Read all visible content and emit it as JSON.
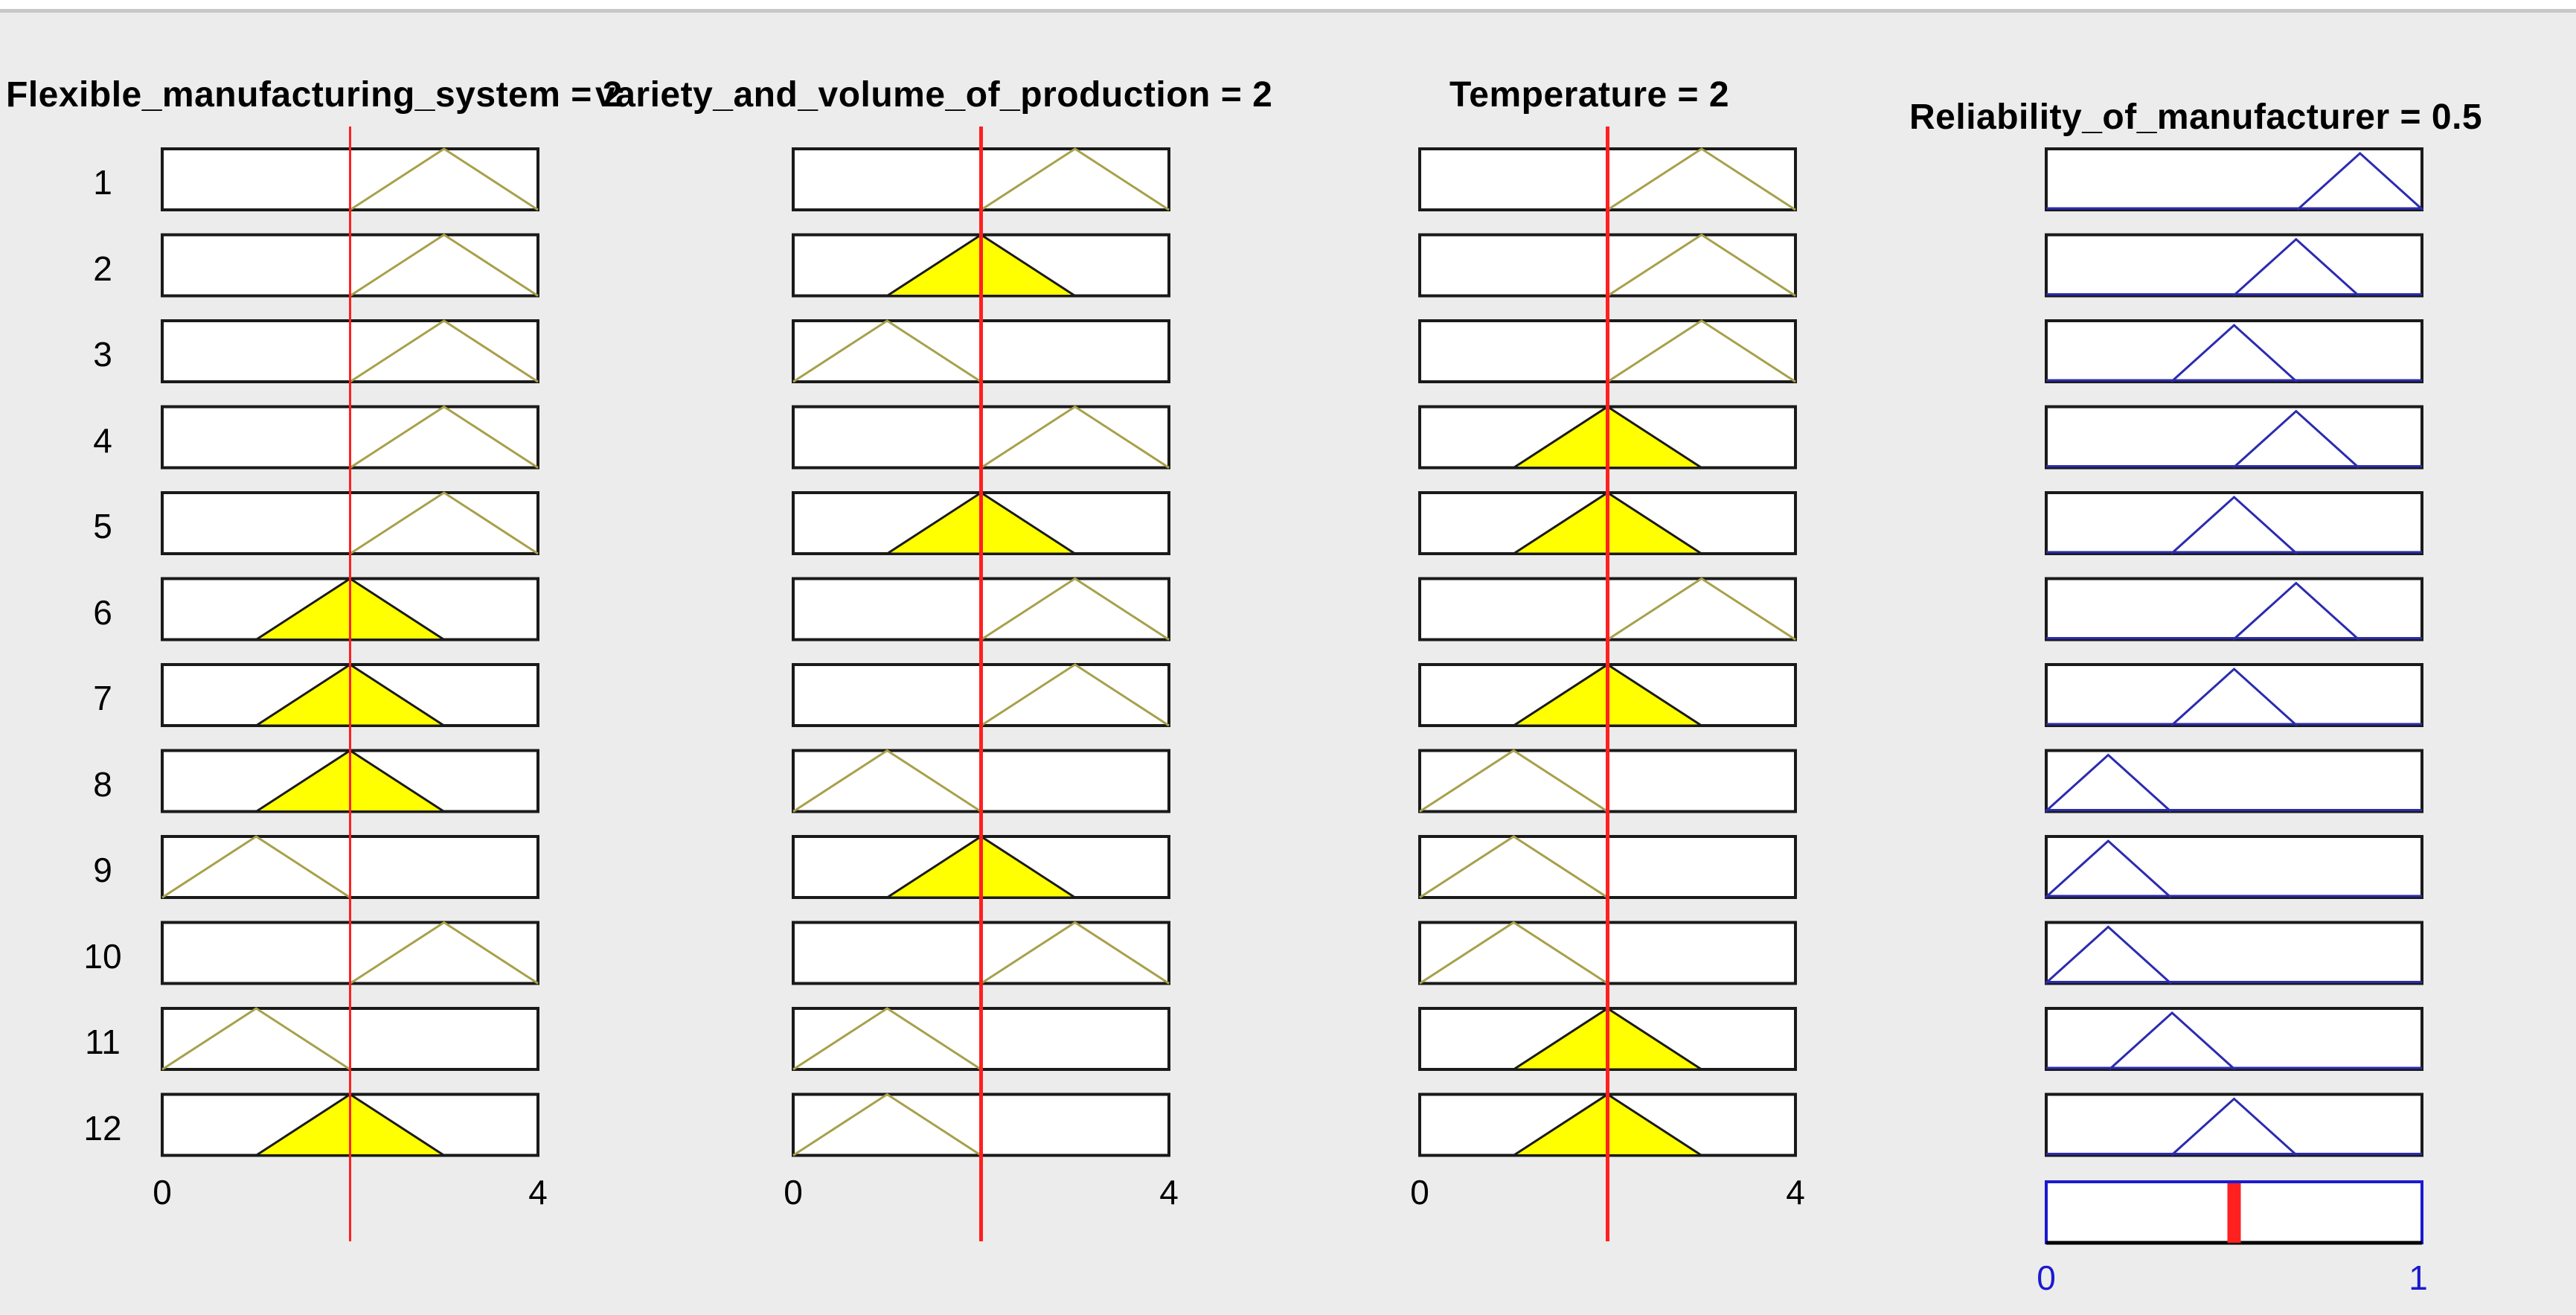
{
  "window": {
    "rule_color": "#c8c8c8",
    "background": "#ececec"
  },
  "inputs": [
    {
      "title": "Flexible_manufacturing_system = 2",
      "value": 2,
      "range": [
        0,
        4
      ],
      "mf_centers": [
        3,
        3,
        3,
        3,
        3,
        2,
        2,
        2,
        1,
        3,
        1,
        2
      ],
      "ticks": {
        "min": "0",
        "max": "4"
      }
    },
    {
      "title": "variety_and_volume_of_production = 2",
      "value": 2,
      "range": [
        0,
        4
      ],
      "mf_centers": [
        3,
        2,
        1,
        3,
        2,
        3,
        3,
        1,
        2,
        3,
        1,
        1
      ],
      "ticks": {
        "min": "0",
        "max": "4"
      }
    },
    {
      "title": "Temperature = 2",
      "value": 2,
      "range": [
        0,
        4
      ],
      "mf_centers": [
        3,
        3,
        3,
        2,
        2,
        3,
        2,
        1,
        1,
        1,
        2,
        2
      ],
      "ticks": {
        "min": "0",
        "max": "4"
      }
    }
  ],
  "output": {
    "title": "Reliability_of_manufacturer = 0.5",
    "value": 0.5,
    "range": [
      0,
      1
    ],
    "mf_centers": [
      0.835,
      0.665,
      0.5,
      0.665,
      0.5,
      0.665,
      0.5,
      0.165,
      0.165,
      0.165,
      0.335,
      0.5
    ],
    "mf_half_width": 0.167,
    "ticks": {
      "min": "0",
      "max": "1"
    }
  },
  "rules": [
    "1",
    "2",
    "3",
    "4",
    "5",
    "6",
    "7",
    "8",
    "9",
    "10",
    "11",
    "12"
  ],
  "colors": {
    "fill": "#ffff00",
    "triangle_line": "#a8a04a",
    "active_edge": "#1a1a1a",
    "output_line": "#2b2bb0",
    "output_axis": "#1a1ad0",
    "indicator": "#ff2020"
  }
}
